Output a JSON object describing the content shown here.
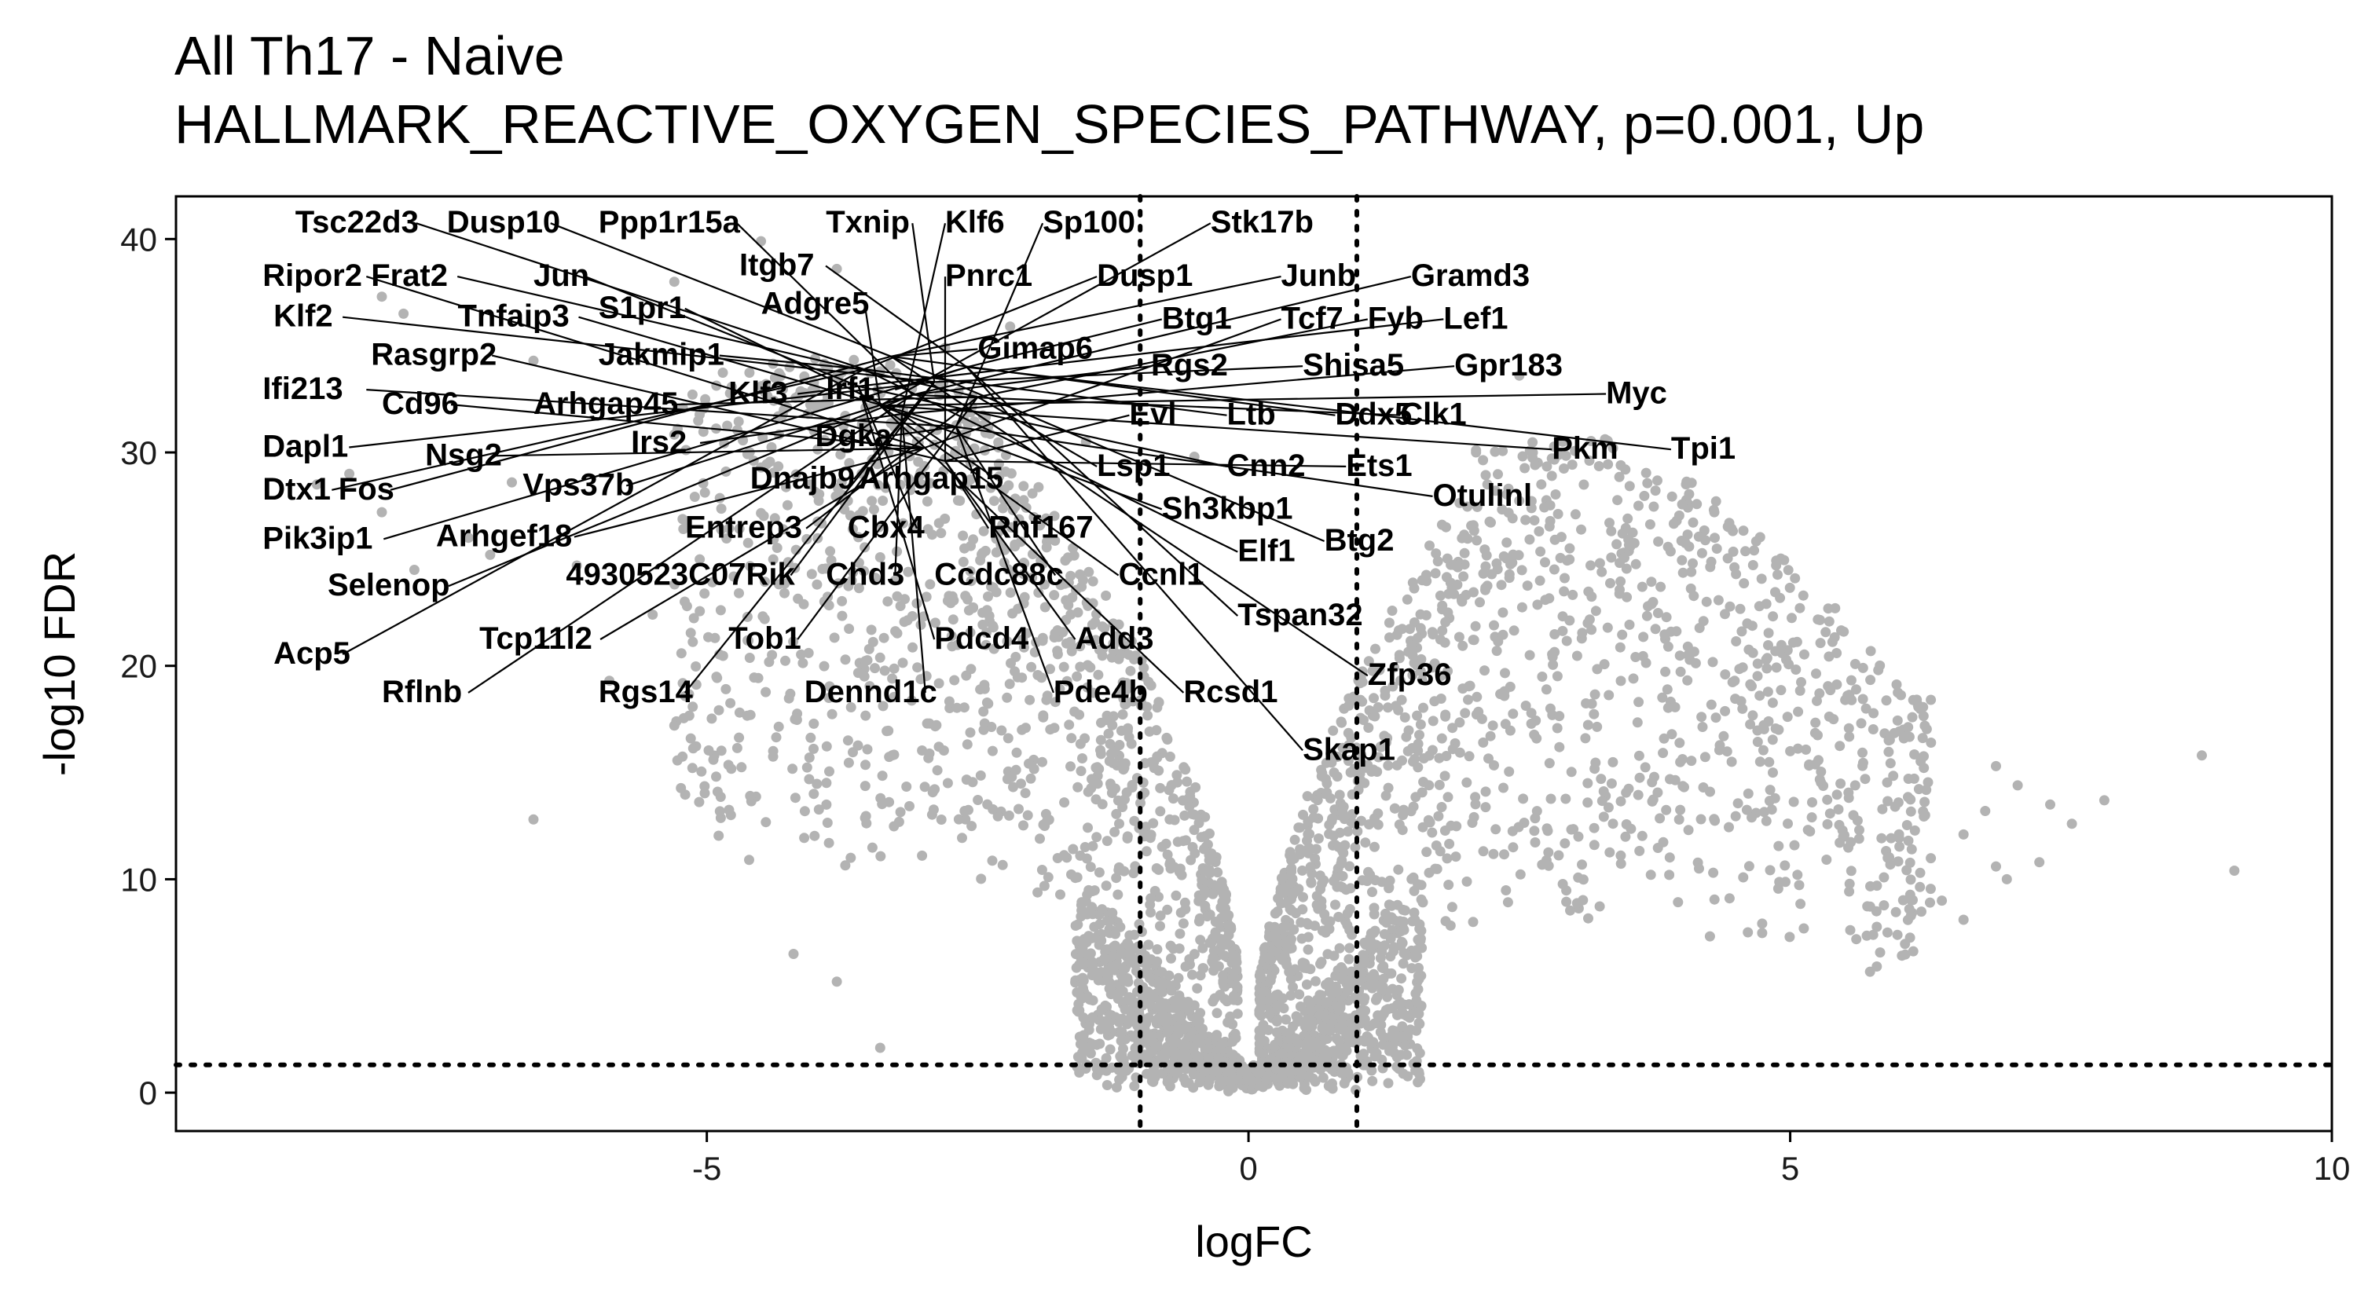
{
  "chart_data": {
    "type": "scatter",
    "title": "All Th17 - Naive",
    "subtitle": "HALLMARK_REACTIVE_OXYGEN_SPECIES_PATHWAY, p=0.001, Up",
    "xlabel": "logFC",
    "ylabel": "-log10 FDR",
    "xlim": [
      -9.9,
      10
    ],
    "ylim": [
      -1.8,
      42
    ],
    "x_ticks": [
      -5,
      0,
      5,
      10
    ],
    "y_ticks": [
      0,
      10,
      20,
      30,
      40
    ],
    "grid": false,
    "legend": "none",
    "point_color": "#b3b3b3",
    "reference_lines": {
      "x": [
        -1,
        1
      ],
      "y": 1.3
    },
    "background_points_note_free": true,
    "highlighted_points": [
      {
        "x": -8.0,
        "y": 37.3
      },
      {
        "x": -7.8,
        "y": 36.5
      },
      {
        "x": -5.3,
        "y": 38.0
      },
      {
        "x": -4.5,
        "y": 39.9
      },
      {
        "x": -3.8,
        "y": 38.6
      },
      {
        "x": -3.4,
        "y": 33.8
      },
      {
        "x": -4.0,
        "y": 34.4
      },
      {
        "x": -4.3,
        "y": 31.8
      },
      {
        "x": -6.6,
        "y": 34.3
      },
      {
        "x": -2.2,
        "y": 35.9
      },
      {
        "x": -2.8,
        "y": 34.9
      },
      {
        "x": -1.5,
        "y": 30.5
      },
      {
        "x": -0.5,
        "y": 29.8
      },
      {
        "x": 2.5,
        "y": 33.6
      },
      {
        "x": 2.9,
        "y": 30.5
      },
      {
        "x": 3.6,
        "y": 27.5
      },
      {
        "x": 2.1,
        "y": 30.1
      }
    ],
    "annotations": [
      {
        "text": "Tsc22d3",
        "x": -8.8,
        "y": 40.3
      },
      {
        "text": "Dusp10",
        "x": -7.4,
        "y": 40.3
      },
      {
        "text": "Ppp1r15a",
        "x": -6.0,
        "y": 40.3
      },
      {
        "text": "Txnip",
        "x": -3.9,
        "y": 40.3
      },
      {
        "text": "Klf6",
        "x": -2.8,
        "y": 40.3
      },
      {
        "text": "Sp100",
        "x": -1.9,
        "y": 40.3
      },
      {
        "text": "Stk17b",
        "x": -0.35,
        "y": 40.3
      },
      {
        "text": "Itgb7",
        "x": -4.7,
        "y": 38.3
      },
      {
        "text": "Ripor2",
        "x": -9.1,
        "y": 37.8
      },
      {
        "text": "Frat2",
        "x": -8.1,
        "y": 37.8
      },
      {
        "text": "Jun",
        "x": -6.6,
        "y": 37.8
      },
      {
        "text": "Pnrc1",
        "x": -2.8,
        "y": 37.8
      },
      {
        "text": "Dusp1",
        "x": -1.4,
        "y": 37.8
      },
      {
        "text": "Junb",
        "x": 0.3,
        "y": 37.8
      },
      {
        "text": "Gramd3",
        "x": 1.5,
        "y": 37.8
      },
      {
        "text": "Klf2",
        "x": -9.0,
        "y": 35.9
      },
      {
        "text": "S1pr1",
        "x": -6.0,
        "y": 36.3
      },
      {
        "text": "Tnfaip3",
        "x": -7.3,
        "y": 35.9
      },
      {
        "text": "Adgre5",
        "x": -4.5,
        "y": 36.5
      },
      {
        "text": "Btg1",
        "x": -0.8,
        "y": 35.8
      },
      {
        "text": "Tcf7",
        "x": 0.3,
        "y": 35.8
      },
      {
        "text": "Fyb",
        "x": 1.1,
        "y": 35.8
      },
      {
        "text": "Lef1",
        "x": 1.8,
        "y": 35.8
      },
      {
        "text": "Rasgrp2",
        "x": -8.1,
        "y": 34.1
      },
      {
        "text": "Jakmip1",
        "x": -6.0,
        "y": 34.1
      },
      {
        "text": "Gimap6",
        "x": -2.5,
        "y": 34.4
      },
      {
        "text": "Rgs2",
        "x": -0.9,
        "y": 33.6
      },
      {
        "text": "Shisa5",
        "x": 0.5,
        "y": 33.6
      },
      {
        "text": "Gpr183",
        "x": 1.9,
        "y": 33.6
      },
      {
        "text": "Ifi213",
        "x": -9.1,
        "y": 32.5
      },
      {
        "text": "Myc",
        "x": 3.3,
        "y": 32.3
      },
      {
        "text": "Irf1",
        "x": -3.9,
        "y": 32.5
      },
      {
        "text": "Cd96",
        "x": -8.0,
        "y": 31.8
      },
      {
        "text": "Arhgap45",
        "x": -6.6,
        "y": 31.8
      },
      {
        "text": "Klf3",
        "x": -4.8,
        "y": 32.3
      },
      {
        "text": "Evl",
        "x": -1.1,
        "y": 31.3
      },
      {
        "text": "Ltb",
        "x": -0.2,
        "y": 31.3
      },
      {
        "text": "Ddx5",
        "x": 0.8,
        "y": 31.3
      },
      {
        "text": "Clk1",
        "x": 1.4,
        "y": 31.3
      },
      {
        "text": "Dapl1",
        "x": -9.1,
        "y": 29.8
      },
      {
        "text": "Irs2",
        "x": -5.7,
        "y": 30.0
      },
      {
        "text": "Dgka",
        "x": -4.0,
        "y": 30.3
      },
      {
        "text": "Pkm",
        "x": 2.8,
        "y": 29.7
      },
      {
        "text": "Tpi1",
        "x": 3.9,
        "y": 29.7
      },
      {
        "text": "Nsg2",
        "x": -7.6,
        "y": 29.4
      },
      {
        "text": "Lsp1",
        "x": -1.4,
        "y": 28.9
      },
      {
        "text": "Cnn2",
        "x": -0.2,
        "y": 28.9
      },
      {
        "text": "Ets1",
        "x": 0.9,
        "y": 28.9
      },
      {
        "text": "Dtx1",
        "x": -9.1,
        "y": 27.8
      },
      {
        "text": "Fos",
        "x": -8.4,
        "y": 27.8
      },
      {
        "text": "Vps37b",
        "x": -6.7,
        "y": 28.0
      },
      {
        "text": "Dnajb9",
        "x": -4.6,
        "y": 28.3
      },
      {
        "text": "Arhgap15",
        "x": -3.6,
        "y": 28.3
      },
      {
        "text": "Otulinl",
        "x": 1.7,
        "y": 27.5
      },
      {
        "text": "Sh3kbp1",
        "x": -0.8,
        "y": 26.9
      },
      {
        "text": "Pik3ip1",
        "x": -9.1,
        "y": 25.5
      },
      {
        "text": "Arhgef18",
        "x": -7.5,
        "y": 25.6
      },
      {
        "text": "Entrep3",
        "x": -5.2,
        "y": 26.0
      },
      {
        "text": "Cbx4",
        "x": -3.7,
        "y": 26.0
      },
      {
        "text": "Rnf167",
        "x": -2.4,
        "y": 26.0
      },
      {
        "text": "Elf1",
        "x": -0.1,
        "y": 24.9
      },
      {
        "text": "Btg2",
        "x": 0.7,
        "y": 25.4
      },
      {
        "text": "Selenop",
        "x": -8.5,
        "y": 23.3
      },
      {
        "text": "4930523C07Rik",
        "x": -6.3,
        "y": 23.8
      },
      {
        "text": "Chd3",
        "x": -3.9,
        "y": 23.8
      },
      {
        "text": "Ccdc88c",
        "x": -2.9,
        "y": 23.8
      },
      {
        "text": "Ccnl1",
        "x": -1.2,
        "y": 23.8
      },
      {
        "text": "Tspan32",
        "x": -0.1,
        "y": 21.9
      },
      {
        "text": "Tcp11l2",
        "x": -7.1,
        "y": 20.8
      },
      {
        "text": "Tob1",
        "x": -4.8,
        "y": 20.8
      },
      {
        "text": "Pdcd4",
        "x": -2.9,
        "y": 20.8
      },
      {
        "text": "Add3",
        "x": -1.6,
        "y": 20.8
      },
      {
        "text": "Acp5",
        "x": -9.0,
        "y": 20.1
      },
      {
        "text": "Zfp36",
        "x": 1.1,
        "y": 19.1
      },
      {
        "text": "Rflnb",
        "x": -8.0,
        "y": 18.3
      },
      {
        "text": "Rgs14",
        "x": -6.0,
        "y": 18.3
      },
      {
        "text": "Dennd1c",
        "x": -4.1,
        "y": 18.3
      },
      {
        "text": "Pde4b",
        "x": -1.8,
        "y": 18.3
      },
      {
        "text": "Rcsd1",
        "x": -0.6,
        "y": 18.3
      },
      {
        "text": "Skap1",
        "x": 0.5,
        "y": 15.6
      }
    ]
  }
}
